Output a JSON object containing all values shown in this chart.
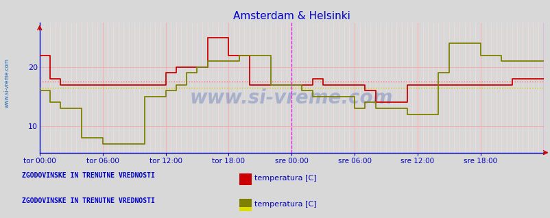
{
  "title": "Amsterdam & Helsinki",
  "title_color": "#0000cc",
  "bg_color": "#d8d8d8",
  "plot_bg_color": "#d8d8d8",
  "axis_color": "#0000bb",
  "grid_major_color": "#ffaaaa",
  "grid_minor_color": "#ffdddd",
  "yticks": [
    10,
    20
  ],
  "ylim": [
    5.5,
    27.5
  ],
  "xlim": [
    0,
    576
  ],
  "xtick_labels": [
    "tor 00:00",
    "tor 06:00",
    "tor 12:00",
    "tor 18:00",
    "sre 00:00",
    "sre 06:00",
    "sre 12:00",
    "sre 18:00"
  ],
  "xtick_positions": [
    0,
    72,
    144,
    216,
    288,
    360,
    432,
    504
  ],
  "vline_magenta_dashed": 288,
  "vline_magenta_solid": 576,
  "amsterdam_color": "#cc0000",
  "helsinki_color": "#808000",
  "amsterdam_avg": 17.5,
  "helsinki_avg": 16.5,
  "avg_amsterdam_color": "#ff6666",
  "avg_helsinki_color": "#cccc00",
  "watermark": "www.si-vreme.com",
  "watermark_color": "#3355aa",
  "watermark_alpha": 0.3,
  "legend1_label": "ZGODOVINSKE IN TRENUTNE VREDNOSTI",
  "legend2_label": "ZGODOVINSKE IN TRENUTNE VREDNOSTI",
  "legend_color": "#0000cc",
  "series_label": "temperatura [C]",
  "amsterdam_x": [
    0,
    12,
    24,
    36,
    48,
    60,
    72,
    84,
    96,
    108,
    120,
    132,
    144,
    156,
    168,
    180,
    192,
    204,
    216,
    228,
    240,
    252,
    264,
    276,
    288,
    300,
    312,
    324,
    336,
    348,
    360,
    372,
    384,
    396,
    408,
    420,
    432,
    444,
    456,
    468,
    480,
    492,
    504,
    516,
    528,
    540,
    552,
    564,
    576
  ],
  "amsterdam_y": [
    22,
    18,
    17,
    17,
    17,
    17,
    17,
    17,
    17,
    17,
    17,
    17,
    19,
    20,
    20,
    20,
    25,
    25,
    22,
    22,
    17,
    17,
    17,
    17,
    17,
    17,
    18,
    17,
    17,
    17,
    17,
    16,
    14,
    14,
    14,
    17,
    17,
    17,
    17,
    17,
    17,
    17,
    17,
    17,
    17,
    18,
    18,
    18,
    18
  ],
  "helsinki_x": [
    0,
    12,
    24,
    36,
    48,
    60,
    72,
    84,
    96,
    108,
    120,
    132,
    144,
    156,
    168,
    180,
    192,
    204,
    216,
    228,
    240,
    252,
    264,
    276,
    288,
    300,
    312,
    324,
    336,
    348,
    360,
    372,
    384,
    396,
    408,
    420,
    432,
    444,
    456,
    468,
    480,
    492,
    504,
    516,
    528,
    540,
    552,
    564,
    576
  ],
  "helsinki_y": [
    16,
    14,
    13,
    13,
    8,
    8,
    7,
    7,
    7,
    7,
    15,
    15,
    16,
    17,
    19,
    20,
    21,
    21,
    21,
    22,
    22,
    22,
    17,
    17,
    17,
    16,
    15,
    15,
    15,
    15,
    13,
    14,
    13,
    13,
    13,
    12,
    12,
    12,
    19,
    24,
    24,
    24,
    22,
    22,
    21,
    21,
    21,
    21,
    21
  ]
}
